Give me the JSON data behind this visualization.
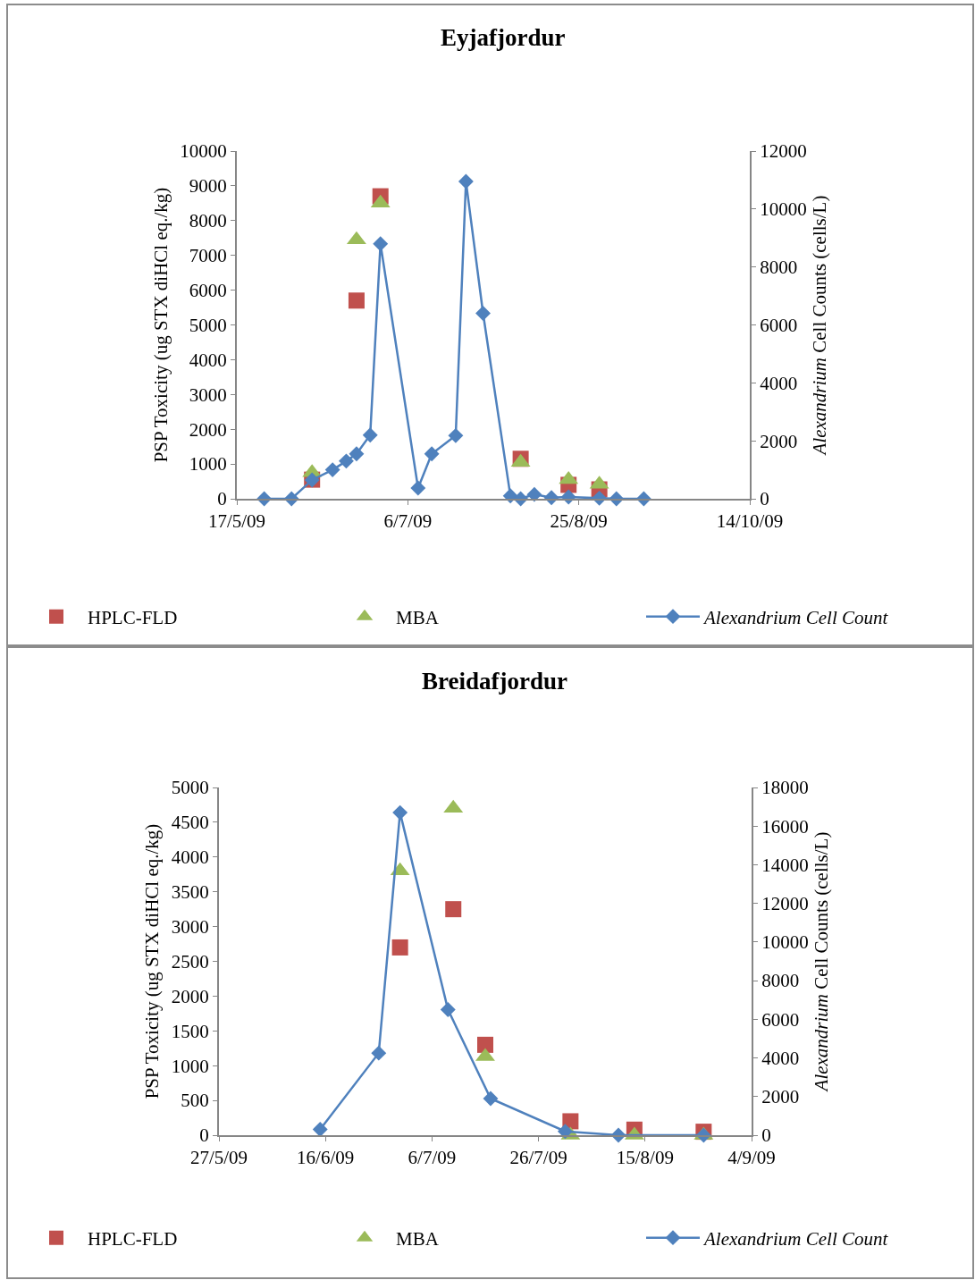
{
  "chart_data": [
    {
      "type": "line",
      "title": "Eyjafjordur",
      "ylabel": "PSP Toxicity (ug STX diHCl eq./kg)",
      "y2label": "Alexandrium Cell Counts (cells/L)",
      "xlim": [
        "2009-05-17",
        "2009-10-14"
      ],
      "xticks": [
        {
          "value": "2009-05-17",
          "label": "17/5/09"
        },
        {
          "value": "2009-07-06",
          "label": "6/7/09"
        },
        {
          "value": "2009-08-25",
          "label": "25/8/09"
        },
        {
          "value": "2009-10-14",
          "label": "14/10/09"
        }
      ],
      "ylim": [
        0,
        10000
      ],
      "yticks": [
        0,
        1000,
        2000,
        3000,
        4000,
        5000,
        6000,
        7000,
        8000,
        9000,
        10000
      ],
      "y2lim": [
        0,
        12000
      ],
      "y2ticks": [
        0,
        2000,
        4000,
        6000,
        8000,
        10000,
        12000
      ],
      "legend": "bottom",
      "series": [
        {
          "name": "HPLC-FLD",
          "type": "scatter",
          "marker": "square",
          "color": "#c0504d",
          "x": [
            "2009-06-08",
            "2009-06-21",
            "2009-06-28",
            "2009-08-08",
            "2009-08-22",
            "2009-08-31"
          ],
          "values": [
            550,
            5700,
            8700,
            1150,
            400,
            270
          ]
        },
        {
          "name": "MBA",
          "type": "scatter",
          "marker": "triangle",
          "color": "#9bbb59",
          "x": [
            "2009-06-08",
            "2009-06-21",
            "2009-06-28",
            "2009-08-08",
            "2009-08-22",
            "2009-08-31"
          ],
          "values": [
            750,
            7450,
            8500,
            1050,
            550,
            420
          ]
        },
        {
          "name": "Alexandrium Cell Count",
          "marker": "diamond",
          "line_style": "solid",
          "axis": "y2",
          "color": "#4f81bd",
          "x": [
            "2009-05-25",
            "2009-06-02",
            "2009-06-08",
            "2009-06-14",
            "2009-06-18",
            "2009-06-21",
            "2009-06-25",
            "2009-06-28",
            "2009-07-09",
            "2009-07-13",
            "2009-07-20",
            "2009-07-23",
            "2009-07-28",
            "2009-08-05",
            "2009-08-08",
            "2009-08-12",
            "2009-08-17",
            "2009-08-22",
            "2009-08-31",
            "2009-09-05",
            "2009-09-13"
          ],
          "values": [
            0,
            0,
            650,
            1000,
            1300,
            1550,
            2200,
            8800,
            370,
            1550,
            2180,
            10950,
            6400,
            100,
            0,
            150,
            40,
            60,
            20,
            0,
            0
          ]
        }
      ]
    },
    {
      "type": "line",
      "title": "Breidafjordur",
      "ylabel": "PSP Toxicity (ug STX diHCl eq./kg)",
      "y2label": "Alexandrium Cell Counts (cells/L)",
      "xlim": [
        "2009-05-27",
        "2009-09-04"
      ],
      "xticks": [
        {
          "value": "2009-05-27",
          "label": "27/5/09"
        },
        {
          "value": "2009-06-16",
          "label": "16/6/09"
        },
        {
          "value": "2009-07-06",
          "label": "6/7/09"
        },
        {
          "value": "2009-07-26",
          "label": "26/7/09"
        },
        {
          "value": "2009-08-15",
          "label": "15/8/09"
        },
        {
          "value": "2009-09-04",
          "label": "4/9/09"
        }
      ],
      "ylim": [
        0,
        5000
      ],
      "yticks": [
        0,
        500,
        1000,
        1500,
        2000,
        2500,
        3000,
        3500,
        4000,
        4500,
        5000
      ],
      "y2lim": [
        0,
        18000
      ],
      "y2ticks": [
        0,
        2000,
        4000,
        6000,
        8000,
        10000,
        12000,
        14000,
        16000,
        18000
      ],
      "legend": "bottom",
      "series": [
        {
          "name": "HPLC-FLD",
          "type": "scatter",
          "marker": "square",
          "color": "#c0504d",
          "x": [
            "2009-06-30",
            "2009-07-10",
            "2009-07-16",
            "2009-08-01",
            "2009-08-13",
            "2009-08-26"
          ],
          "values": [
            2700,
            3250,
            1300,
            200,
            80,
            50
          ]
        },
        {
          "name": "MBA",
          "type": "scatter",
          "marker": "triangle",
          "color": "#9bbb59",
          "x": [
            "2009-06-30",
            "2009-07-10",
            "2009-07-16",
            "2009-08-01",
            "2009-08-13",
            "2009-08-26"
          ],
          "values": [
            3800,
            4700,
            1130,
            0,
            0,
            0
          ]
        },
        {
          "name": "Alexandrium Cell Count",
          "marker": "diamond",
          "line_style": "solid",
          "axis": "y2",
          "color": "#4f81bd",
          "x": [
            "2009-06-15",
            "2009-06-26",
            "2009-06-30",
            "2009-07-09",
            "2009-07-17",
            "2009-07-31",
            "2009-08-10",
            "2009-08-26"
          ],
          "values": [
            300,
            4250,
            16700,
            6500,
            1900,
            200,
            0,
            0
          ]
        }
      ]
    }
  ]
}
